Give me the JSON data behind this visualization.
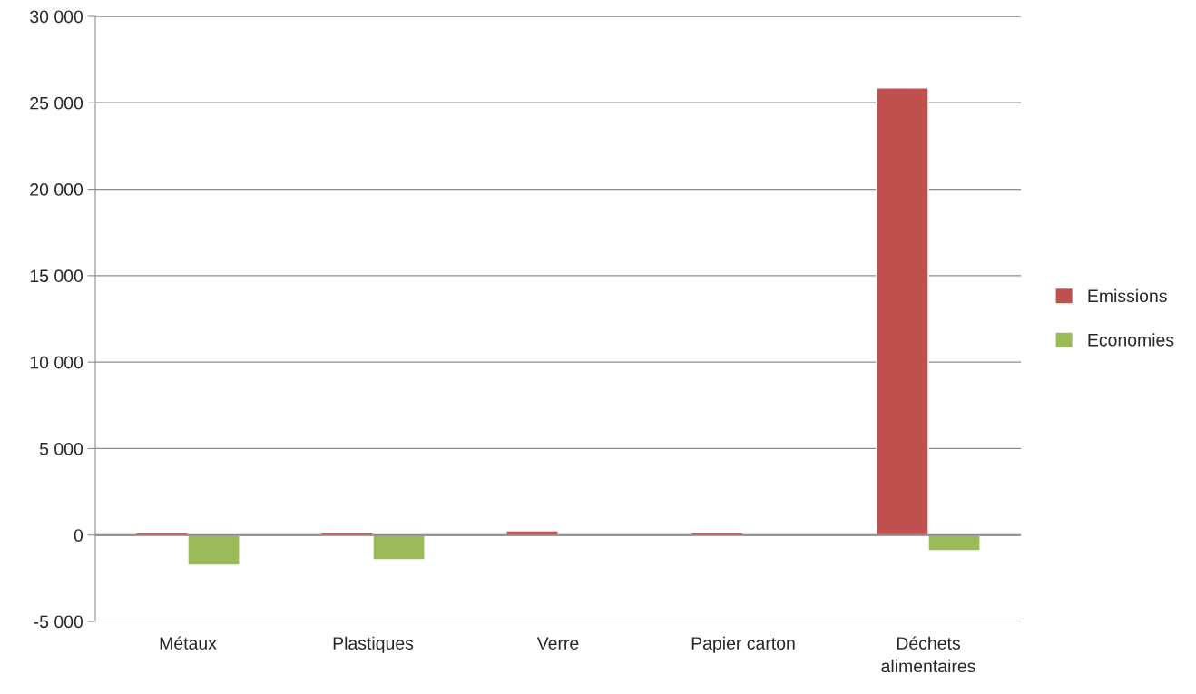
{
  "chart_data": {
    "type": "bar",
    "categories": [
      "Métaux",
      "Plastiques",
      "Verre",
      "Papier carton",
      "Déchets\nalimentaires"
    ],
    "series": [
      {
        "name": "Emissions",
        "color": "#c0504d",
        "values": [
          140,
          140,
          250,
          140,
          25870
        ]
      },
      {
        "name": "Economies",
        "color": "#9bbb59",
        "values": [
          -1750,
          -1430,
          null,
          null,
          -910
        ]
      }
    ],
    "ylim": [
      -5000,
      30000
    ],
    "yticks": [
      {
        "value": -5000,
        "label": "-5 000"
      },
      0,
      {
        "value": 5000,
        "label": "5 000"
      },
      {
        "value": 10000,
        "label": "10 000"
      },
      {
        "value": 15000,
        "label": "15 000"
      },
      {
        "value": 20000,
        "label": "20 000"
      },
      {
        "value": 25000,
        "label": "25 000"
      },
      {
        "value": 30000,
        "label": "30 000"
      }
    ],
    "grid": "y",
    "legend": "right"
  }
}
